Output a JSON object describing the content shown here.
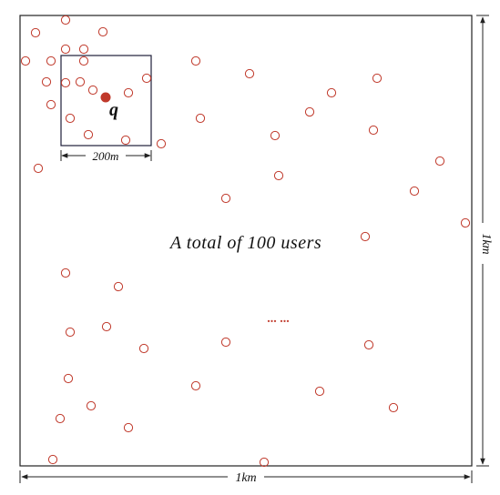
{
  "caption": "A total of 100 users",
  "query_label": "q",
  "window_label": "200m",
  "width_label": "1km",
  "height_label": "1km",
  "ellipsis": "... ...",
  "colors": {
    "user_point": "#c0392b",
    "query_point": "#c0392b",
    "frame": "#222222",
    "window": "#1f1f3a",
    "text": "#111111"
  }
}
